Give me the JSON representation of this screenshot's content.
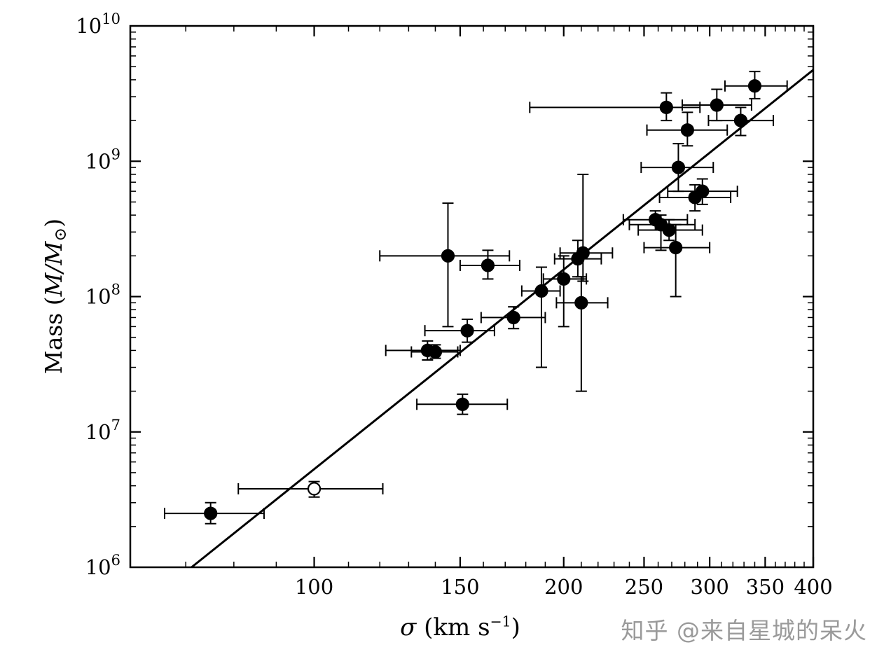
{
  "page": {
    "background": "#ffffff"
  },
  "colors": {
    "foreground": "#000000",
    "background": "#ffffff",
    "watermark": "#9a9a9a"
  },
  "watermark": {
    "text": "知乎 @来自星城的呆火"
  },
  "chart_data": {
    "type": "scatter",
    "title": "",
    "xlabel": "σ (km s⁻¹)",
    "ylabel": "Mass (M/M⊙)",
    "xlabel_parts": {
      "sigma": "σ",
      "pre": " (km s",
      "sup": "−1",
      "post": ")"
    },
    "ylabel_parts": {
      "pre": "Mass (",
      "italic": "M/M",
      "sun": "⊙",
      "post": ")"
    },
    "x_scale": "log",
    "y_scale": "log",
    "xlim": [
      60,
      400
    ],
    "ylim": [
      1000000.0,
      10000000000.0
    ],
    "grid": false,
    "legend": false,
    "y_tick_base": "10",
    "x_major_ticks": [
      {
        "value": 100,
        "label": "100"
      },
      {
        "value": 150,
        "label": "150"
      },
      {
        "value": 200,
        "label": "200"
      },
      {
        "value": 250,
        "label": "250"
      },
      {
        "value": 300,
        "label": "300"
      },
      {
        "value": 350,
        "label": "350"
      },
      {
        "value": 400,
        "label": "400"
      }
    ],
    "x_minor_ticks": [
      70,
      80,
      90,
      110,
      120,
      130,
      140,
      160,
      170,
      180,
      190,
      210,
      220,
      230,
      240,
      260,
      270,
      280,
      290,
      310,
      320,
      330,
      340,
      360,
      370,
      380,
      390
    ],
    "y_major_ticks": [
      {
        "value": 1000000.0,
        "exp": "6"
      },
      {
        "value": 10000000.0,
        "exp": "7"
      },
      {
        "value": 100000000.0,
        "exp": "8"
      },
      {
        "value": 1000000000.0,
        "exp": "9"
      },
      {
        "value": 10000000000.0,
        "exp": "10"
      }
    ],
    "y_minor_decades": [
      6,
      7,
      8,
      9
    ],
    "fit_line": {
      "slope_dex": 4.9,
      "log_mass_at_sigma_200": 8.2
    },
    "points": [
      {
        "sigma": 75,
        "sigma_lo": 66,
        "sigma_hi": 87,
        "mass": 2500000.0,
        "mass_lo": 2100000.0,
        "mass_hi": 3000000.0,
        "open": false
      },
      {
        "sigma": 100,
        "sigma_lo": 81,
        "sigma_hi": 121,
        "mass": 3800000.0,
        "mass_lo": 3300000.0,
        "mass_hi": 4300000.0,
        "open": true
      },
      {
        "sigma": 137,
        "sigma_lo": 122,
        "sigma_hi": 150,
        "mass": 40000000.0,
        "mass_lo": 34000000.0,
        "mass_hi": 47000000.0,
        "open": false
      },
      {
        "sigma": 140,
        "sigma_lo": 131,
        "sigma_hi": 149,
        "mass": 39000000.0,
        "mass_lo": 35000000.0,
        "mass_hi": 44000000.0,
        "open": false
      },
      {
        "sigma": 145,
        "sigma_lo": 120,
        "sigma_hi": 172,
        "mass": 200000000.0,
        "mass_lo": 60000000.0,
        "mass_hi": 490000000.0,
        "open": false
      },
      {
        "sigma": 153,
        "sigma_lo": 136,
        "sigma_hi": 165,
        "mass": 56000000.0,
        "mass_lo": 46000000.0,
        "mass_hi": 68000000.0,
        "open": false
      },
      {
        "sigma": 151,
        "sigma_lo": 133,
        "sigma_hi": 171,
        "mass": 16000000.0,
        "mass_lo": 13500000.0,
        "mass_hi": 19000000.0,
        "open": false
      },
      {
        "sigma": 162,
        "sigma_lo": 150,
        "sigma_hi": 177,
        "mass": 170000000.0,
        "mass_lo": 135000000.0,
        "mass_hi": 220000000.0,
        "open": false
      },
      {
        "sigma": 174,
        "sigma_lo": 159,
        "sigma_hi": 190,
        "mass": 70000000.0,
        "mass_lo": 58000000.0,
        "mass_hi": 84000000.0,
        "open": false
      },
      {
        "sigma": 188,
        "sigma_lo": 178,
        "sigma_hi": 198,
        "mass": 110000000.0,
        "mass_lo": 30000000.0,
        "mass_hi": 165000000.0,
        "open": false
      },
      {
        "sigma": 200,
        "sigma_lo": 189,
        "sigma_hi": 213,
        "mass": 135000000.0,
        "mass_lo": 60000000.0,
        "mass_hi": 200000000.0,
        "open": false
      },
      {
        "sigma": 208,
        "sigma_lo": 195,
        "sigma_hi": 222,
        "mass": 190000000.0,
        "mass_lo": 140000000.0,
        "mass_hi": 260000000.0,
        "open": false
      },
      {
        "sigma": 211,
        "sigma_lo": 198,
        "sigma_hi": 229,
        "mass": 210000000.0,
        "mass_lo": 130000000.0,
        "mass_hi": 800000000.0,
        "open": false
      },
      {
        "sigma": 210,
        "sigma_lo": 196,
        "sigma_hi": 226,
        "mass": 90000000.0,
        "mass_lo": 20000000.0,
        "mass_hi": 140000000.0,
        "open": false
      },
      {
        "sigma": 258,
        "sigma_lo": 236,
        "sigma_hi": 282,
        "mass": 370000000.0,
        "mass_lo": 310000000.0,
        "mass_hi": 430000000.0,
        "open": false
      },
      {
        "sigma": 262,
        "sigma_lo": 240,
        "sigma_hi": 288,
        "mass": 340000000.0,
        "mass_lo": 220000000.0,
        "mass_hi": 400000000.0,
        "open": false
      },
      {
        "sigma": 268,
        "sigma_lo": 246,
        "sigma_hi": 294,
        "mass": 310000000.0,
        "mass_lo": 260000000.0,
        "mass_hi": 370000000.0,
        "open": false
      },
      {
        "sigma": 273,
        "sigma_lo": 250,
        "sigma_hi": 300,
        "mass": 230000000.0,
        "mass_lo": 100000000.0,
        "mass_hi": 340000000.0,
        "open": false
      },
      {
        "sigma": 266,
        "sigma_lo": 182,
        "sigma_hi": 292,
        "mass": 2500000000.0,
        "mass_lo": 2000000000.0,
        "mass_hi": 3200000000.0,
        "open": false
      },
      {
        "sigma": 282,
        "sigma_lo": 252,
        "sigma_hi": 315,
        "mass": 1700000000.0,
        "mass_lo": 1300000000.0,
        "mass_hi": 2300000000.0,
        "open": false
      },
      {
        "sigma": 275,
        "sigma_lo": 248,
        "sigma_hi": 303,
        "mass": 900000000.0,
        "mass_lo": 600000000.0,
        "mass_hi": 1350000000.0,
        "open": false
      },
      {
        "sigma": 288,
        "sigma_lo": 261,
        "sigma_hi": 318,
        "mass": 540000000.0,
        "mass_lo": 430000000.0,
        "mass_hi": 670000000.0,
        "open": false
      },
      {
        "sigma": 294,
        "sigma_lo": 267,
        "sigma_hi": 324,
        "mass": 600000000.0,
        "mass_lo": 480000000.0,
        "mass_hi": 740000000.0,
        "open": false
      },
      {
        "sigma": 306,
        "sigma_lo": 278,
        "sigma_hi": 337,
        "mass": 2600000000.0,
        "mass_lo": 2000000000.0,
        "mass_hi": 3400000000.0,
        "open": false
      },
      {
        "sigma": 327,
        "sigma_lo": 299,
        "sigma_hi": 358,
        "mass": 2000000000.0,
        "mass_lo": 1550000000.0,
        "mass_hi": 2500000000.0,
        "open": false
      },
      {
        "sigma": 340,
        "sigma_lo": 313,
        "sigma_hi": 372,
        "mass": 3600000000.0,
        "mass_lo": 2900000000.0,
        "mass_hi": 4600000000.0,
        "open": false
      }
    ]
  }
}
